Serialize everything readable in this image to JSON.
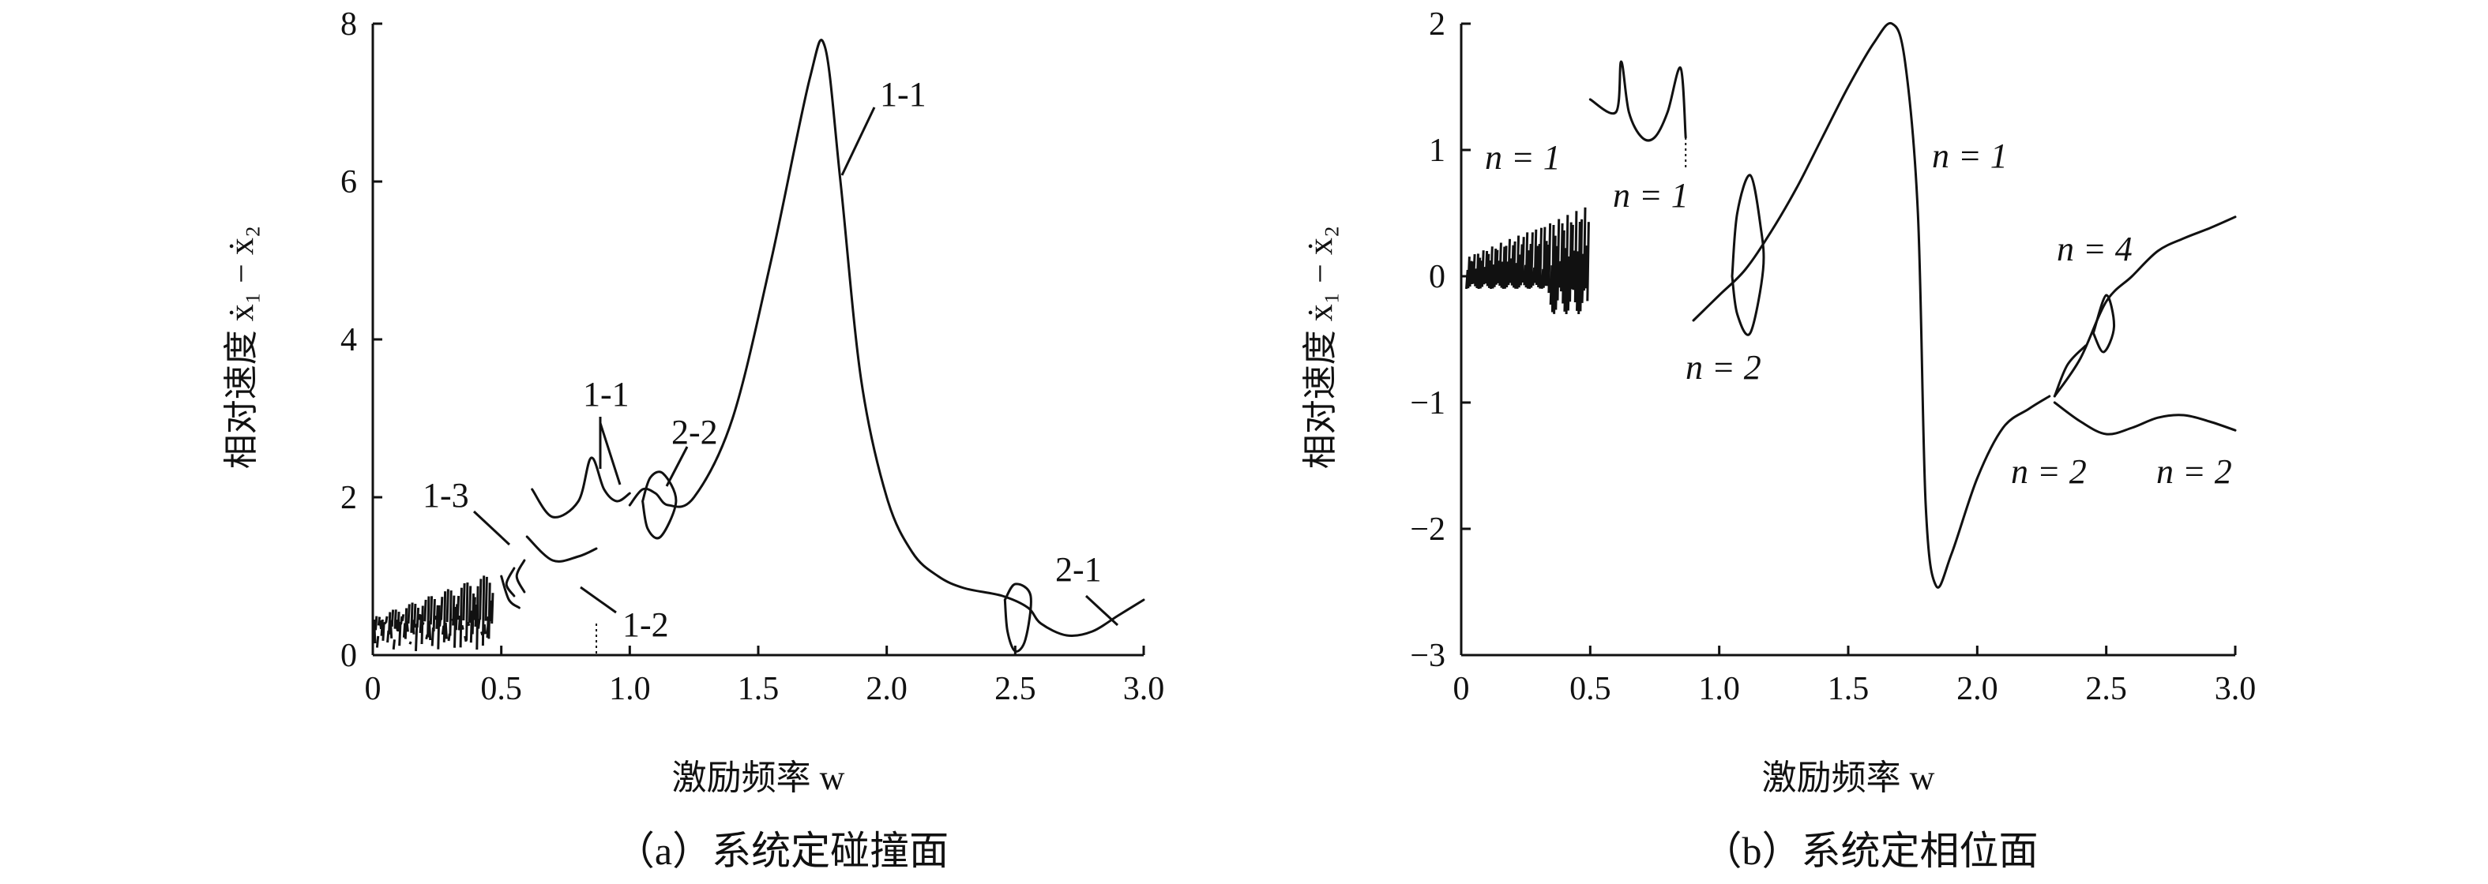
{
  "chart_data": [
    {
      "type": "line",
      "caption": "（a）系统定碰撞面",
      "xlabel": "激励频率 w",
      "ylabel": "相对速度 ẋ₁ − ẋ₂",
      "xlim": [
        0,
        3.0
      ],
      "ylim": [
        0,
        8
      ],
      "xticks": [
        "0",
        "0.5",
        "1.0",
        "1.5",
        "2.0",
        "2.5",
        "3.0"
      ],
      "yticks": [
        "0",
        "2",
        "4",
        "6",
        "8"
      ],
      "annotations": [
        "1-1",
        "1-1",
        "2-2",
        "1-3",
        "1-2",
        "2-1"
      ],
      "series": [
        {
          "values": [
            [
              0.62,
              2.1
            ],
            [
              0.7,
              1.75
            ],
            [
              0.8,
              1.95
            ],
            [
              0.85,
              2.5
            ],
            [
              0.9,
              2.1
            ],
            [
              0.95,
              1.95
            ],
            [
              1.0,
              2.05
            ]
          ]
        },
        {
          "values": [
            [
              1.0,
              1.9
            ],
            [
              1.05,
              2.1
            ],
            [
              1.1,
              2.05
            ],
            [
              1.15,
              1.9
            ],
            [
              1.25,
              2.0
            ],
            [
              1.4,
              3.0
            ],
            [
              1.55,
              5.0
            ],
            [
              1.7,
              7.3
            ],
            [
              1.76,
              7.7
            ],
            [
              1.82,
              6.0
            ],
            [
              1.9,
              3.5
            ],
            [
              2.0,
              2.0
            ],
            [
              2.1,
              1.3
            ],
            [
              2.2,
              1.0
            ],
            [
              2.3,
              0.85
            ],
            [
              2.45,
              0.75
            ],
            [
              2.55,
              0.6
            ],
            [
              2.6,
              0.4
            ],
            [
              2.7,
              0.25
            ],
            [
              2.8,
              0.3
            ],
            [
              2.9,
              0.5
            ],
            [
              3.0,
              0.7
            ]
          ]
        },
        {
          "values": [
            [
              0.6,
              1.5
            ],
            [
              0.7,
              1.2
            ],
            [
              0.8,
              1.25
            ],
            [
              0.87,
              1.35
            ]
          ]
        },
        {
          "values": [
            [
              0.5,
              1.0
            ],
            [
              0.53,
              0.7
            ],
            [
              0.57,
              0.6
            ]
          ]
        }
      ]
    },
    {
      "type": "line",
      "caption": "（b）系统定相位面",
      "xlabel": "激励频率 w",
      "ylabel": "相对速度 ẋ₁ − ẋ₂",
      "xlim": [
        0,
        3.0
      ],
      "ylim": [
        -3,
        2
      ],
      "xticks": [
        "0",
        "0.5",
        "1.0",
        "1.5",
        "2.0",
        "2.5",
        "3.0"
      ],
      "yticks": [
        "−3",
        "−2",
        "−1",
        "0",
        "1",
        "2"
      ],
      "annotations": [
        "n = 1",
        "n = 1",
        "n = 2",
        "n = 1",
        "n = 4",
        "n = 2",
        "n = 2"
      ],
      "series": [
        {
          "values": [
            [
              0.5,
              1.4
            ],
            [
              0.6,
              1.3
            ],
            [
              0.62,
              1.7
            ],
            [
              0.65,
              1.3
            ],
            [
              0.7,
              1.1
            ],
            [
              0.75,
              1.1
            ],
            [
              0.8,
              1.3
            ],
            [
              0.85,
              1.65
            ],
            [
              0.87,
              1.1
            ]
          ]
        },
        {
          "values": [
            [
              0.9,
              -0.35
            ],
            [
              1.0,
              -0.15
            ],
            [
              1.1,
              0.05
            ],
            [
              1.2,
              0.35
            ],
            [
              1.3,
              0.7
            ],
            [
              1.4,
              1.1
            ],
            [
              1.5,
              1.5
            ],
            [
              1.6,
              1.85
            ],
            [
              1.67,
              2.0
            ],
            [
              1.72,
              1.7
            ],
            [
              1.77,
              0.5
            ],
            [
              1.8,
              -1.8
            ],
            [
              1.84,
              -2.45
            ],
            [
              1.9,
              -2.2
            ],
            [
              2.0,
              -1.6
            ],
            [
              2.1,
              -1.2
            ],
            [
              2.2,
              -1.05
            ],
            [
              2.28,
              -0.95
            ]
          ]
        },
        {
          "values": [
            [
              2.3,
              -0.95
            ],
            [
              2.4,
              -0.65
            ],
            [
              2.5,
              -0.2
            ],
            [
              2.6,
              0.0
            ],
            [
              2.7,
              0.2
            ],
            [
              2.8,
              0.3
            ],
            [
              2.9,
              0.38
            ],
            [
              3.0,
              0.47
            ]
          ]
        },
        {
          "values": [
            [
              2.3,
              -1.0
            ],
            [
              2.4,
              -1.15
            ],
            [
              2.5,
              -1.25
            ],
            [
              2.6,
              -1.2
            ],
            [
              2.7,
              -1.12
            ],
            [
              2.8,
              -1.1
            ],
            [
              2.9,
              -1.15
            ],
            [
              3.0,
              -1.22
            ]
          ]
        }
      ]
    }
  ]
}
